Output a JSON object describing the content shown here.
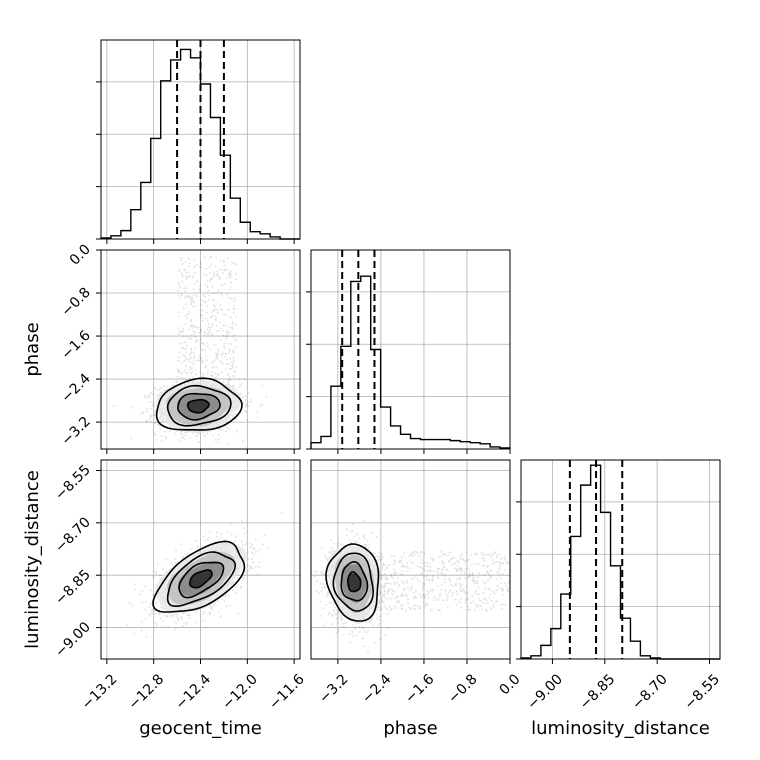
{
  "chart_data": {
    "type": "corner",
    "parameters": [
      "geocent_time",
      "phase",
      "luminosity_distance"
    ],
    "axis_labels": {
      "geocent_time": "geocent_time",
      "phase": "phase",
      "luminosity_distance": "luminosity_distance"
    },
    "ranges": {
      "geocent_time": [
        -13.25,
        -11.55
      ],
      "phase": [
        -3.7,
        0.0
      ],
      "luminosity_distance": [
        -9.09,
        -8.52
      ]
    },
    "ticks": {
      "geocent_time": {
        "values": [
          -13.2,
          -12.8,
          -12.4,
          -12.0,
          -11.6
        ],
        "labels": [
          "−13.2",
          "−12.8",
          "−12.4",
          "−12.0",
          "−11.6"
        ]
      },
      "phase": {
        "values": [
          -3.2,
          -2.4,
          -1.6,
          -0.8,
          0.0
        ],
        "labels": [
          "−3.2",
          "−2.4",
          "−1.6",
          "−0.8",
          "0.0"
        ]
      },
      "luminosity_distance": {
        "values": [
          -9.0,
          -8.85,
          -8.7,
          -8.55
        ],
        "labels": [
          "−9.00",
          "−8.85",
          "−8.70",
          "−8.55"
        ]
      }
    },
    "diagonal_histograms": {
      "geocent_time": {
        "bin_edges": [
          -13.25,
          -13.165,
          -13.08,
          -12.995,
          -12.91,
          -12.825,
          -12.74,
          -12.655,
          -12.57,
          -12.485,
          -12.4,
          -12.315,
          -12.23,
          -12.145,
          -12.06,
          -11.975,
          -11.89,
          -11.805,
          -11.72,
          -11.635,
          -11.55
        ],
        "counts": [
          1,
          3,
          8,
          28,
          54,
          96,
          151,
          171,
          181,
          173,
          148,
          116,
          80,
          39,
          16,
          7,
          5,
          2,
          0,
          0
        ],
        "quantiles": [
          -12.6,
          -12.4,
          -12.2
        ],
        "grid_y": [
          0,
          50,
          100,
          150
        ]
      },
      "phase": {
        "bin_edges": [
          -3.7,
          -3.515,
          -3.33,
          -3.145,
          -2.96,
          -2.775,
          -2.59,
          -2.405,
          -2.22,
          -2.035,
          -1.85,
          -1.665,
          -1.48,
          -1.295,
          -1.11,
          -0.925,
          -0.74,
          -0.555,
          -0.37,
          -0.185,
          0.0
        ],
        "counts": [
          6,
          12,
          60,
          98,
          160,
          165,
          95,
          40,
          22,
          14,
          10,
          9,
          9,
          9,
          8,
          7,
          6,
          5,
          2,
          1
        ],
        "quantiles": [
          -3.12,
          -2.82,
          -2.52
        ],
        "grid_y": [
          0,
          50,
          100,
          150
        ]
      },
      "luminosity_distance": {
        "bin_edges": [
          -9.09,
          -9.0615,
          -9.033,
          -9.0045,
          -8.976,
          -8.9475,
          -8.919,
          -8.8905,
          -8.862,
          -8.8335,
          -8.805,
          -8.7765,
          -8.748,
          -8.7195,
          -8.691,
          -8.6625,
          -8.634,
          -8.6055,
          -8.577,
          -8.5485,
          -8.52
        ],
        "counts": [
          1,
          3,
          13,
          29,
          62,
          117,
          166,
          185,
          140,
          89,
          39,
          17,
          3,
          1,
          0,
          0,
          0,
          0,
          0,
          0
        ],
        "quantiles": [
          -8.95,
          -8.875,
          -8.8
        ],
        "grid_y": [
          0,
          50,
          100,
          150
        ]
      }
    },
    "joint_distributions": [
      {
        "x_param": "geocent_time",
        "y_param": "phase",
        "mean": [
          -12.42,
          -2.9
        ],
        "sd": [
          0.18,
          0.24
        ],
        "corr": 0.1,
        "tail": {
          "x_range": [
            -12.6,
            -12.1
          ],
          "y_range": [
            -3.0,
            -0.1
          ]
        },
        "contour_levels_sigma": [
          0.5,
          1.0,
          1.5,
          2.0
        ]
      },
      {
        "x_param": "geocent_time",
        "y_param": "luminosity_distance",
        "mean": [
          -12.4,
          -8.86
        ],
        "sd": [
          0.19,
          0.05
        ],
        "corr": 0.55,
        "contour_levels_sigma": [
          0.5,
          1.0,
          1.5,
          2.0
        ]
      },
      {
        "x_param": "phase",
        "y_param": "luminosity_distance",
        "mean": [
          -2.9,
          -8.87
        ],
        "sd": [
          0.24,
          0.055
        ],
        "corr": -0.1,
        "tail": {
          "x_range": [
            -2.6,
            0.0
          ],
          "y_range": [
            -8.95,
            -8.78
          ]
        },
        "contour_levels_sigma": [
          0.5,
          1.0,
          1.5,
          2.0
        ]
      }
    ],
    "histogram_style": "step",
    "quantile_style": "dashed",
    "grid": true
  }
}
